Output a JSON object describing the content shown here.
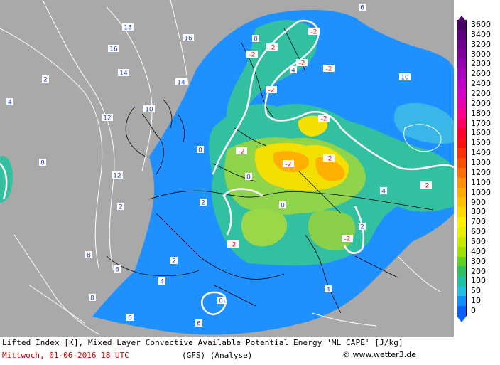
{
  "caption": "Lifted Index [K], Mixed Layer Convective Available Potential Energy 'ML CAPE' [J/kg]",
  "date": "Mittwoch, 01-06-2016  18 UTC",
  "model": "(GFS)   (Analyse)",
  "copyright": "www.wetter3.de",
  "copyright_symbol": "©",
  "colors": {
    "sea": "#a9a9a9",
    "border": "#000000",
    "isoline": "#ffffff",
    "negative_label": "#ff0000",
    "positive_label": "#2040c0",
    "date_text": "#d00000"
  },
  "cape_scale": [
    {
      "label": "3600",
      "color": "#4b0066"
    },
    {
      "label": "3400",
      "color": "#5d0080"
    },
    {
      "label": "3200",
      "color": "#700090"
    },
    {
      "label": "3000",
      "color": "#8300a0"
    },
    {
      "label": "2800",
      "color": "#9600b0"
    },
    {
      "label": "2600",
      "color": "#aa00c0"
    },
    {
      "label": "2400",
      "color": "#c000c8"
    },
    {
      "label": "2200",
      "color": "#d400c8"
    },
    {
      "label": "2000",
      "color": "#e800b0"
    },
    {
      "label": "1800",
      "color": "#ff0090"
    },
    {
      "label": "1700",
      "color": "#ff0060"
    },
    {
      "label": "1600",
      "color": "#ff0030"
    },
    {
      "label": "1500",
      "color": "#ff1010"
    },
    {
      "label": "1400",
      "color": "#ff3000"
    },
    {
      "label": "1300",
      "color": "#ff5000"
    },
    {
      "label": "1200",
      "color": "#ff7000"
    },
    {
      "label": "1100",
      "color": "#ff9000"
    },
    {
      "label": "1000",
      "color": "#ffa800"
    },
    {
      "label": "900",
      "color": "#ffc000"
    },
    {
      "label": "800",
      "color": "#ffd800"
    },
    {
      "label": "700",
      "color": "#fff000"
    },
    {
      "label": "600",
      "color": "#e8f000"
    },
    {
      "label": "500",
      "color": "#c8e800"
    },
    {
      "label": "400",
      "color": "#a0e000"
    },
    {
      "label": "300",
      "color": "#60d020"
    },
    {
      "label": "200",
      "color": "#30c060"
    },
    {
      "label": "100",
      "color": "#20c0a0"
    },
    {
      "label": "50",
      "color": "#20c0e0"
    },
    {
      "label": "10",
      "color": "#1090ff"
    },
    {
      "label": "0",
      "color": "#0a60ff"
    }
  ],
  "lifted_index_labels": [
    {
      "text": "-2",
      "kind": "neg"
    },
    {
      "text": "-2",
      "kind": "neg"
    },
    {
      "text": "-2",
      "kind": "neg"
    },
    {
      "text": "-2",
      "kind": "neg"
    },
    {
      "text": "-2",
      "kind": "neg"
    },
    {
      "text": "-2",
      "kind": "neg"
    },
    {
      "text": "-2",
      "kind": "neg"
    },
    {
      "text": "-2",
      "kind": "neg"
    },
    {
      "text": "-2",
      "kind": "neg"
    },
    {
      "text": "-2",
      "kind": "neg"
    },
    {
      "text": "-2",
      "kind": "neg"
    },
    {
      "text": "-2",
      "kind": "neg"
    },
    {
      "text": "-2",
      "kind": "neg"
    },
    {
      "text": "0",
      "kind": "pos"
    },
    {
      "text": "0",
      "kind": "pos"
    },
    {
      "text": "0",
      "kind": "pos"
    },
    {
      "text": "0",
      "kind": "pos"
    },
    {
      "text": "0",
      "kind": "pos"
    },
    {
      "text": "2",
      "kind": "pos"
    },
    {
      "text": "2",
      "kind": "pos"
    },
    {
      "text": "2",
      "kind": "pos"
    },
    {
      "text": "2",
      "kind": "pos"
    },
    {
      "text": "2",
      "kind": "pos"
    },
    {
      "text": "4",
      "kind": "pos"
    },
    {
      "text": "4",
      "kind": "pos"
    },
    {
      "text": "4",
      "kind": "pos"
    },
    {
      "text": "4",
      "kind": "pos"
    },
    {
      "text": "4",
      "kind": "pos"
    },
    {
      "text": "6",
      "kind": "pos"
    },
    {
      "text": "6",
      "kind": "pos"
    },
    {
      "text": "6",
      "kind": "pos"
    },
    {
      "text": "6",
      "kind": "pos"
    },
    {
      "text": "8",
      "kind": "pos"
    },
    {
      "text": "8",
      "kind": "pos"
    },
    {
      "text": "8",
      "kind": "pos"
    },
    {
      "text": "10",
      "kind": "pos"
    },
    {
      "text": "10",
      "kind": "pos"
    },
    {
      "text": "12",
      "kind": "pos"
    },
    {
      "text": "12",
      "kind": "pos"
    },
    {
      "text": "14",
      "kind": "pos"
    },
    {
      "text": "14",
      "kind": "pos"
    },
    {
      "text": "16",
      "kind": "pos"
    },
    {
      "text": "16",
      "kind": "pos"
    },
    {
      "text": "18",
      "kind": "pos"
    }
  ]
}
